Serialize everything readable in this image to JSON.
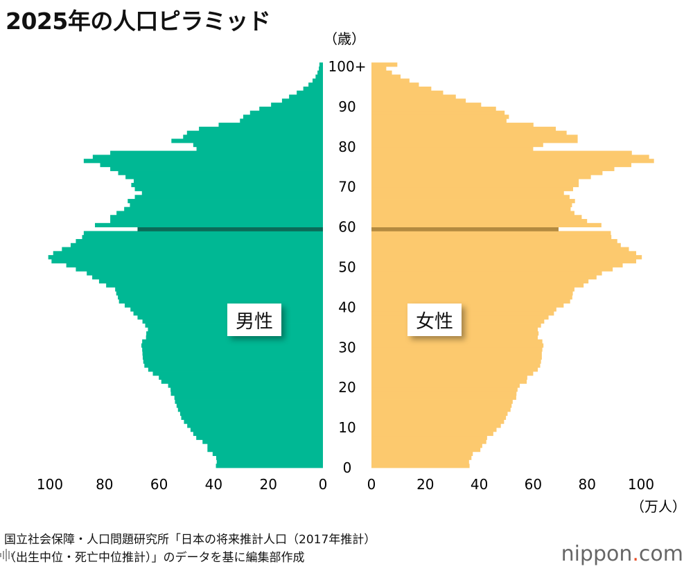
{
  "chart_data": {
    "type": "bar",
    "orientation": "horizontal-pyramid",
    "title": "2025年の人口ピラミッド",
    "ylabel": "（歳）",
    "xlabel": "（万人）",
    "xlim": [
      0,
      100
    ],
    "age_ticks": [
      "0",
      "10",
      "20",
      "30",
      "40",
      "50",
      "60",
      "70",
      "80",
      "90",
      "100+"
    ],
    "x_ticks_male": [
      "100",
      "80",
      "60",
      "40",
      "20",
      "0"
    ],
    "x_ticks_female": [
      "0",
      "20",
      "40",
      "60",
      "80",
      "100"
    ],
    "highlighted_age": 59,
    "categories_note": "ages 0..100+ ascending",
    "series": [
      {
        "name": "男性",
        "color": "#00b894",
        "highlight_color": "#0b6b58",
        "values": [
          39.2,
          38.9,
          39.1,
          40.4,
          42.3,
          42.3,
          44.1,
          46.4,
          47.5,
          48.5,
          49.7,
          50.9,
          51.9,
          52.3,
          53.1,
          53.6,
          54.2,
          54.4,
          55.7,
          55.8,
          56.7,
          59.2,
          60.1,
          62.3,
          64,
          65.4,
          65.8,
          66,
          66.1,
          66.2,
          66.5,
          66.2,
          64.8,
          64.7,
          64.1,
          65.1,
          66.1,
          67.9,
          69.4,
          70.5,
          72.6,
          74.7,
          75.1,
          75.7,
          76.1,
          79.4,
          82,
          84.5,
          86.5,
          90.5,
          94,
          99.4,
          100.6,
          98.8,
          95.6,
          92.4,
          90.5,
          88.2,
          87.6,
          67.9,
          83.5,
          77.9,
          77.9,
          75.6,
          72.8,
          70.7,
          71.5,
          68.9,
          66.3,
          68.9,
          70.2,
          69.3,
          72.3,
          75,
          77.9,
          81.6,
          87.6,
          84.3,
          77.9,
          46.3,
          47.5,
          55.5,
          51.2,
          49.8,
          45.4,
          38.2,
          30.4,
          29.2,
          26.7,
          23.3,
          19,
          15,
          12.4,
          9.6,
          7.2,
          5.3,
          3.8,
          2.7,
          2.0,
          1.5,
          1.3
        ]
      },
      {
        "name": "女性",
        "color": "#fcc96e",
        "highlight_color": "#b38a40",
        "values": [
          36.4,
          36.2,
          37.1,
          37.6,
          40.4,
          41.1,
          42.6,
          42.9,
          45.2,
          46.4,
          48,
          49.2,
          49.9,
          50.5,
          51.6,
          52,
          52.4,
          53.7,
          53.8,
          54.2,
          55,
          57.6,
          57.8,
          60,
          61.7,
          62.6,
          62.9,
          63.2,
          63.2,
          63.4,
          63.8,
          63.4,
          61.7,
          62,
          61.7,
          62.9,
          64.1,
          65.7,
          67.7,
          68.6,
          71.3,
          73.7,
          74.5,
          74.7,
          75.3,
          78.7,
          80.5,
          83.5,
          85.5,
          89.5,
          93.2,
          98.2,
          100.3,
          98.2,
          95.5,
          92.5,
          91.2,
          89,
          88.8,
          69.4,
          85.3,
          80,
          78,
          75.3,
          73.9,
          74.4,
          75.5,
          73.5,
          71.4,
          74.8,
          76.9,
          76.9,
          81.4,
          85.7,
          90.1,
          96.4,
          104.8,
          103,
          96.6,
          60,
          63.7,
          76.5,
          76.5,
          72.4,
          68.4,
          60.1,
          50.1,
          51,
          49.4,
          46.2,
          40.7,
          35,
          31.3,
          26.6,
          22.2,
          17.6,
          14.1,
          10.8,
          7.6,
          5.5,
          9.6
        ]
      }
    ]
  },
  "labels": {
    "male": "男性",
    "female": "女性"
  },
  "source": {
    "line1": "国立社会保障・人口問題研究所「日本の将来推計人口（2017年推計）",
    "line2": "（出生中位・死亡中位推計）」のデータを基に編集部作成"
  },
  "logo": {
    "name": "nippon",
    "dot": ".",
    "tld": "com"
  }
}
